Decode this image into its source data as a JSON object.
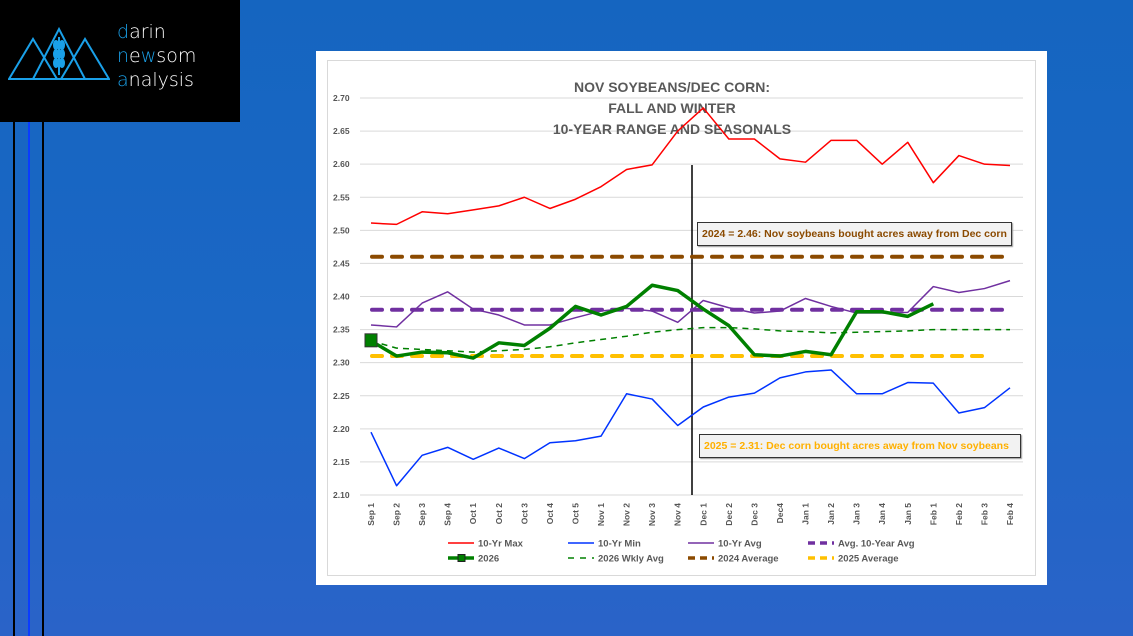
{
  "logo": {
    "line1_accent": "d",
    "line1_rest": "arin",
    "line2_accent": "n",
    "line2_mid": "e",
    "line2_accent2": "w",
    "line2_rest": "som",
    "line3_accent": "a",
    "line3_rest": "nalysis"
  },
  "colors": {
    "background": "#1b67c5",
    "logo_accent": "#1aa0e8",
    "max": "#ff0000",
    "min": "#0033ff",
    "avg": "#7030a0",
    "avg10": "#7030a0",
    "y2026": "#008000",
    "wkly": "#008000",
    "avg2024": "#8b4a00",
    "avg2025": "#ffc000"
  },
  "annotations": {
    "note2024": "2024 = 2.46: Nov soybeans bought acres away from Dec corn",
    "note2024_color": "#8b4a00",
    "note2025": "2025 = 2.31: Dec corn bought acres away from Nov soybeans",
    "note2025_color": "#ffb000"
  },
  "chart_data": {
    "type": "line",
    "title": [
      "NOV SOYBEANS/DEC CORN:",
      "FALL AND WINTER",
      "10-YEAR RANGE AND SEASONALS"
    ],
    "xlabel": "",
    "ylabel": "",
    "ylim": [
      2.1,
      2.7
    ],
    "yticks": [
      2.1,
      2.15,
      2.2,
      2.25,
      2.3,
      2.35,
      2.4,
      2.45,
      2.5,
      2.55,
      2.6,
      2.65,
      2.7
    ],
    "ytick_labels": [
      "2.10",
      "2.15",
      "2.20",
      "2.25",
      "2.30",
      "2.35",
      "2.40",
      "2.45",
      "2.50",
      "2.55",
      "2.60",
      "2.65",
      "2.70"
    ],
    "grid": true,
    "legend_position": "bottom",
    "categories": [
      "Sep 1",
      "Sep 2",
      "Sep 3",
      "Sep 4",
      "Oct 1",
      "Oct 2",
      "Oct 3",
      "Oct 4",
      "Oct 5",
      "Nov 1",
      "Nov 2",
      "Nov 3",
      "Nov 4",
      "Dec 1",
      "Dec 2",
      "Dec 3",
      "Dec4",
      "Jan 1",
      "Jan 2",
      "Jan 3",
      "Jan 4",
      "Jan 5",
      "Feb 1",
      "Feb 2",
      "Feb 3",
      "Feb 4"
    ],
    "vertical_marker_between": [
      "Nov 4",
      "Dec 1"
    ],
    "series": [
      {
        "name": "10-Yr Max",
        "key": "max",
        "style": "solid",
        "values": [
          2.511,
          2.509,
          2.528,
          2.525,
          2.531,
          2.537,
          2.55,
          2.533,
          2.547,
          2.566,
          2.592,
          2.599,
          2.65,
          2.685,
          2.638,
          2.638,
          2.608,
          2.603,
          2.636,
          2.636,
          2.6,
          2.633,
          2.572,
          2.613,
          2.6,
          2.598
        ]
      },
      {
        "name": "10-Yr Min",
        "key": "min",
        "style": "solid",
        "values": [
          2.195,
          2.114,
          2.16,
          2.172,
          2.154,
          2.171,
          2.155,
          2.179,
          2.182,
          2.189,
          2.253,
          2.245,
          2.205,
          2.233,
          2.248,
          2.254,
          2.277,
          2.286,
          2.289,
          2.253,
          2.253,
          2.27,
          2.269,
          2.224,
          2.232,
          2.262
        ]
      },
      {
        "name": "10-Yr Avg",
        "key": "avg",
        "style": "solid",
        "values": [
          2.357,
          2.354,
          2.39,
          2.407,
          2.381,
          2.372,
          2.357,
          2.357,
          2.368,
          2.378,
          2.382,
          2.378,
          2.361,
          2.394,
          2.383,
          2.375,
          2.378,
          2.397,
          2.385,
          2.375,
          2.375,
          2.376,
          2.415,
          2.406,
          2.412,
          2.424
        ]
      },
      {
        "name": "Avg. 10-Year Avg",
        "key": "avg10",
        "style": "dash-thick",
        "values": [
          2.38,
          2.38,
          2.38,
          2.38,
          2.38,
          2.38,
          2.38,
          2.38,
          2.38,
          2.38,
          2.38,
          2.38,
          2.38,
          2.38,
          2.38,
          2.38,
          2.38,
          2.38,
          2.38,
          2.38,
          2.38,
          2.38,
          2.38,
          2.38,
          2.38,
          2.38
        ]
      },
      {
        "name": "2026",
        "key": "y2026",
        "style": "solid-thick",
        "values": [
          2.333,
          2.31,
          2.316,
          2.315,
          2.307,
          2.33,
          2.326,
          2.352,
          2.385,
          2.372,
          2.385,
          2.417,
          2.409,
          2.381,
          2.356,
          2.312,
          2.31,
          2.317,
          2.312,
          2.377,
          2.377,
          2.37,
          2.389,
          null,
          null,
          null
        ]
      },
      {
        "name": "2026 Wkly Avg",
        "key": "wkly",
        "style": "dash-thin",
        "values": [
          2.333,
          2.322,
          2.32,
          2.318,
          2.316,
          2.318,
          2.32,
          2.324,
          2.33,
          2.335,
          2.34,
          2.346,
          2.35,
          2.353,
          2.353,
          2.351,
          2.348,
          2.347,
          2.345,
          2.346,
          2.347,
          2.348,
          2.35,
          2.35,
          2.35,
          2.35
        ]
      },
      {
        "name": "2024 Average",
        "key": "avg2024",
        "style": "dash-thick",
        "values": [
          2.46,
          2.46,
          2.46,
          2.46,
          2.46,
          2.46,
          2.46,
          2.46,
          2.46,
          2.46,
          2.46,
          2.46,
          2.46,
          2.46,
          2.46,
          2.46,
          2.46,
          2.46,
          2.46,
          2.46,
          2.46,
          2.46,
          2.46,
          2.46,
          2.46,
          2.46
        ]
      },
      {
        "name": "2025 Average",
        "key": "avg2025",
        "style": "dash-thick",
        "values": [
          2.31,
          2.31,
          2.31,
          2.31,
          2.31,
          2.31,
          2.31,
          2.31,
          2.31,
          2.31,
          2.31,
          2.31,
          2.31,
          2.31,
          2.31,
          2.31,
          2.31,
          2.31,
          2.31,
          2.31,
          2.31,
          2.31,
          2.31,
          2.31,
          2.31,
          null
        ]
      }
    ],
    "legend_rows": [
      [
        "10-Yr Max",
        "10-Yr Min",
        "10-Yr Avg",
        "Avg. 10-Year Avg"
      ],
      [
        "2026",
        "2026 Wkly Avg",
        "2024 Average",
        "2025 Average"
      ]
    ]
  }
}
